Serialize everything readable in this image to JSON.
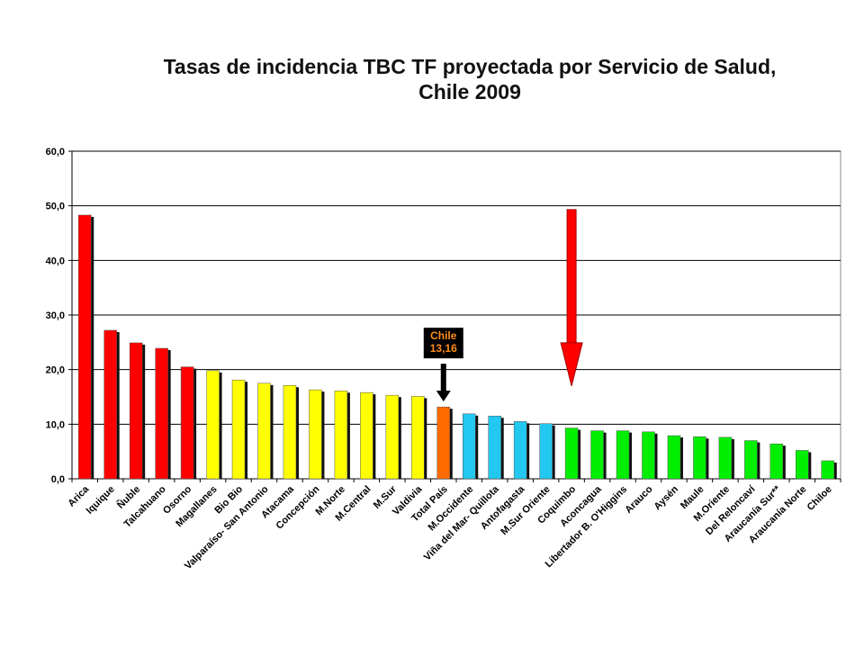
{
  "chart_data": {
    "type": "bar",
    "title": "Tasas de incidencia TBC TF proyectada por Servicio de Salud,",
    "subtitle": "Chile 2009",
    "xlabel": "",
    "ylabel": "",
    "ylim": [
      0,
      60
    ],
    "y_ticks": [
      "0,0",
      "10,0",
      "20,0",
      "30,0",
      "40,0",
      "50,0",
      "60,0"
    ],
    "grid": true,
    "categories": [
      "Arica",
      "Iquique",
      "Ñuble",
      "Talcahuano",
      "Osorno",
      "Magallanes",
      "Bio Bio",
      "Valparaíso- San Antonio",
      "Atacama",
      "Concepción",
      "M.Norte",
      "M.Central",
      "M.Sur",
      "Valdivia",
      "Total País",
      "M.Occidente",
      "Viña del Mar- Quillota",
      "Antofagasta",
      "M.Sur Oriente",
      "Coquimbo",
      "Aconcagua",
      "Libertador B. O'Higgins",
      "Arauco",
      "Aysén",
      "Maule",
      "M.Oriente",
      "Del Reloncaví",
      "Araucanía Sur**",
      "Araucanía Norte",
      "Chiloe"
    ],
    "values": [
      48.3,
      27.2,
      24.9,
      23.9,
      20.5,
      19.8,
      18.1,
      17.5,
      17.1,
      16.3,
      16.1,
      15.8,
      15.3,
      15.1,
      13.16,
      11.9,
      11.5,
      10.5,
      10.1,
      9.3,
      8.8,
      8.8,
      8.6,
      7.9,
      7.7,
      7.6,
      7.0,
      6.4,
      5.2,
      3.3
    ],
    "colors": [
      "#ff0000",
      "#ff0000",
      "#ff0000",
      "#ff0000",
      "#ff0000",
      "#ffff00",
      "#ffff00",
      "#ffff00",
      "#ffff00",
      "#ffff00",
      "#ffff00",
      "#ffff00",
      "#ffff00",
      "#ffff00",
      "#ff6a00",
      "#22c8f0",
      "#22c8f0",
      "#22c8f0",
      "#22c8f0",
      "#00ee00",
      "#00ee00",
      "#00ee00",
      "#00ee00",
      "#00ee00",
      "#00ee00",
      "#00ee00",
      "#00ee00",
      "#00ee00",
      "#00ee00",
      "#00ee00"
    ],
    "annotations": [
      {
        "label_lines": [
          "Chile",
          "13,16"
        ],
        "points_to": "Total País",
        "arrow_color": "#000000",
        "box_color": "#000000",
        "text_color": "#ff8c1a"
      },
      {
        "points_to": "Coquimbo",
        "arrow_color": "#ff0000",
        "arrow_from_value": 49.3,
        "arrow_to_value": 17.0
      }
    ],
    "plot_background": "#ffffff",
    "grid_color": "#000000"
  }
}
